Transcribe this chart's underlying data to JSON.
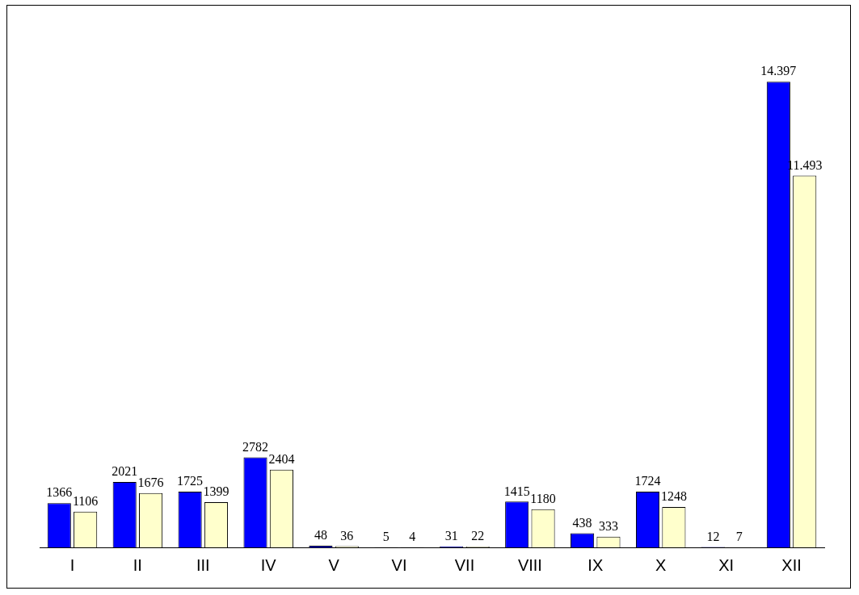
{
  "chart_data": {
    "type": "bar",
    "categories": [
      "I",
      "II",
      "III",
      "IV",
      "V",
      "VI",
      "VII",
      "VIII",
      "IX",
      "X",
      "XI",
      "XII"
    ],
    "series": [
      {
        "color": "#0000ff",
        "values": [
          1366,
          2021,
          1725,
          2782,
          48,
          5,
          31,
          1415,
          438,
          1724,
          12,
          14397
        ],
        "value_labels": [
          "1366",
          "2021",
          "1725",
          "2782",
          "48",
          "5",
          "31",
          "1415",
          "438",
          "1724",
          "12",
          "14.397"
        ]
      },
      {
        "color": "#ffffcc",
        "values": [
          1106,
          1676,
          1399,
          2404,
          36,
          4,
          22,
          1180,
          333,
          1248,
          7,
          11493
        ],
        "value_labels": [
          "1106",
          "1676",
          "1399",
          "2404",
          "36",
          "4",
          "22",
          "1180",
          "333",
          "1248",
          "7",
          "11.493"
        ]
      }
    ],
    "grid": false,
    "legend": false
  }
}
